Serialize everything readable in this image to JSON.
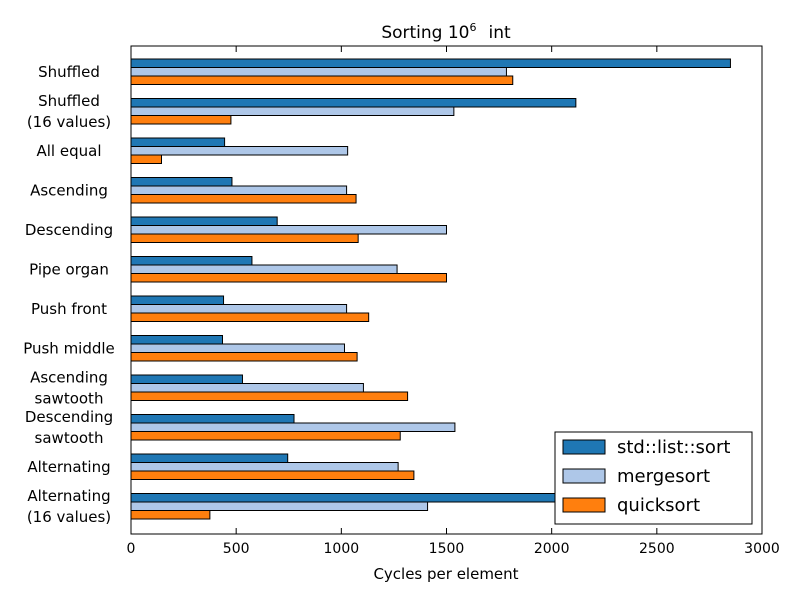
{
  "chart_data": {
    "type": "bar",
    "orientation": "horizontal",
    "title": "Sorting 10",
    "title_superscript": "6",
    "title_suffix": "int",
    "xlabel": "Cycles per element",
    "ylabel": "",
    "xlim": [
      0,
      3000
    ],
    "xticks": [
      "0",
      "500",
      "1000",
      "1500",
      "2000",
      "2500",
      "3000"
    ],
    "xtick_values": [
      0,
      500,
      1000,
      1500,
      2000,
      2500,
      3000
    ],
    "grid": false,
    "legend_position": "bottom-right",
    "categories": [
      [
        "Shuffled"
      ],
      [
        "Shuffled",
        "(16 values)"
      ],
      [
        "All equal"
      ],
      [
        "Ascending"
      ],
      [
        "Descending"
      ],
      [
        "Pipe organ"
      ],
      [
        "Push front"
      ],
      [
        "Push middle"
      ],
      [
        "Ascending",
        "sawtooth"
      ],
      [
        "Descending",
        "sawtooth"
      ],
      [
        "Alternating"
      ],
      [
        "Alternating",
        "(16 values)"
      ]
    ],
    "series": [
      {
        "name": "std::list::sort",
        "color": "#1f77b4",
        "values": [
          2850,
          2115,
          445,
          480,
          695,
          575,
          440,
          435,
          530,
          775,
          745,
          2200
        ]
      },
      {
        "name": "mergesort",
        "color": "#aec7e8",
        "values": [
          1785,
          1535,
          1030,
          1025,
          1500,
          1265,
          1025,
          1015,
          1105,
          1540,
          1270,
          1410
        ]
      },
      {
        "name": "quicksort",
        "color": "#ff7f0e",
        "values": [
          1815,
          475,
          145,
          1070,
          1080,
          1500,
          1130,
          1075,
          1315,
          1280,
          1345,
          375
        ]
      }
    ]
  }
}
